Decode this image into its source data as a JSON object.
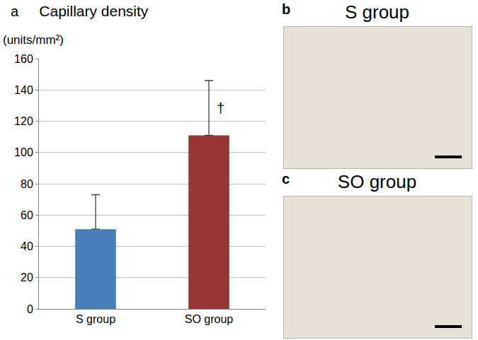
{
  "chart_data": {
    "type": "bar",
    "panel_label": "a",
    "title": "Capillary density",
    "y_label": "(units/mm²)",
    "categories": [
      "S group",
      "SO group"
    ],
    "values": [
      51,
      111
    ],
    "errors": [
      22,
      35
    ],
    "colors": [
      "#4a7ebb",
      "#953735"
    ],
    "ylim": [
      0,
      160
    ],
    "yticks": [
      0,
      20,
      40,
      60,
      80,
      100,
      120,
      140,
      160
    ],
    "grid": true,
    "annotations": [
      {
        "category": "SO group",
        "text": "†"
      }
    ]
  },
  "images": [
    {
      "label": "b",
      "title": "S group"
    },
    {
      "label": "c",
      "title": "SO group"
    }
  ]
}
